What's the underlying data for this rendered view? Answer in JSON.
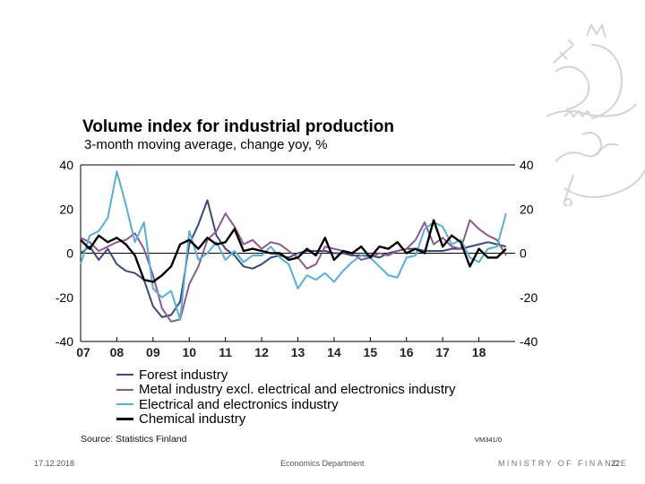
{
  "slide": {
    "footer": {
      "date": "17.12.2018",
      "department": "Economics Department",
      "ministry": "MINISTRY OF FINANCE",
      "page": "22"
    },
    "logo_icon": "finnish-lion-crest-icon"
  },
  "chart_data": {
    "type": "line",
    "title": "Volume index for industrial production",
    "subtitle": "3-month moving average, change yoy, %",
    "xlabel": "",
    "ylabel": "",
    "ylim": [
      -40,
      40
    ],
    "xlim": [
      2007.0,
      2019.0
    ],
    "y_ticks": [
      40,
      20,
      0,
      -20,
      -40
    ],
    "y_tick_labels": [
      "40",
      "20",
      "0",
      "-20",
      "-40"
    ],
    "x_ticks": [
      2007,
      2008,
      2009,
      2010,
      2011,
      2012,
      2013,
      2014,
      2015,
      2016,
      2017,
      2018
    ],
    "x_tick_labels": [
      "07",
      "08",
      "09",
      "10",
      "11",
      "12",
      "13",
      "14",
      "15",
      "16",
      "17",
      "18"
    ],
    "dual_y_axis": true,
    "grid": false,
    "zero_line": true,
    "legend_position": "bottom",
    "source": "Source: Statistics Finland",
    "code": "VM341/0",
    "x": [
      2007.0,
      2007.25,
      2007.5,
      2007.75,
      2008.0,
      2008.25,
      2008.5,
      2008.75,
      2009.0,
      2009.25,
      2009.5,
      2009.75,
      2010.0,
      2010.25,
      2010.5,
      2010.75,
      2011.0,
      2011.25,
      2011.5,
      2011.75,
      2012.0,
      2012.25,
      2012.5,
      2012.75,
      2013.0,
      2013.25,
      2013.5,
      2013.75,
      2014.0,
      2014.25,
      2014.5,
      2014.75,
      2015.0,
      2015.25,
      2015.5,
      2015.75,
      2016.0,
      2016.25,
      2016.5,
      2016.75,
      2017.0,
      2017.25,
      2017.5,
      2017.75,
      2018.0,
      2018.25,
      2018.5,
      2018.75
    ],
    "series": [
      {
        "name": "Forest industry",
        "color": "#3b4a78",
        "values": [
          0,
          3,
          -3,
          2,
          -5,
          -8,
          -9,
          -12,
          -24,
          -29,
          -28,
          -22,
          4,
          13,
          24,
          8,
          2,
          -1,
          -6,
          -7,
          -5,
          -2,
          -1,
          -2,
          0,
          1,
          1,
          1,
          0,
          0,
          -1,
          -1,
          -1,
          -2,
          0,
          1,
          2,
          2,
          1,
          1,
          1,
          2,
          2,
          3,
          4,
          5,
          4,
          3
        ]
      },
      {
        "name": "Metal industry excl. electrical and electronics industry",
        "color": "#8e5a8e",
        "values": [
          7,
          5,
          1,
          3,
          5,
          6,
          9,
          2,
          -10,
          -25,
          -31,
          -30,
          -14,
          -6,
          6,
          10,
          18,
          12,
          4,
          6,
          2,
          5,
          4,
          1,
          -2,
          -7,
          -5,
          3,
          2,
          1,
          0,
          -3,
          -2,
          0,
          -1,
          1,
          2,
          6,
          14,
          4,
          7,
          3,
          2,
          15,
          11,
          8,
          6,
          -1
        ]
      },
      {
        "name": "Electrical and electronics industry",
        "color": "#5aaed6",
        "values": [
          -5,
          8,
          10,
          16,
          37,
          22,
          5,
          14,
          -16,
          -20,
          -17,
          -30,
          10,
          -3,
          0,
          5,
          -3,
          1,
          -4,
          -1,
          -1,
          3,
          -2,
          -5,
          -16,
          -10,
          -12,
          -9,
          -13,
          -8,
          -4,
          -1,
          -2,
          -6,
          -10,
          -11,
          -2,
          -1,
          11,
          14,
          12,
          4,
          6,
          -2,
          -4,
          2,
          3,
          18
        ]
      },
      {
        "name": "Chemical industry",
        "color": "#000000",
        "values": [
          6,
          2,
          8,
          5,
          7,
          4,
          -1,
          -12,
          -13,
          -10,
          -6,
          4,
          6,
          2,
          7,
          4,
          5,
          11,
          1,
          2,
          1,
          0,
          0,
          -3,
          -2,
          2,
          -1,
          7,
          -3,
          1,
          0,
          3,
          -2,
          3,
          2,
          5,
          0,
          2,
          0,
          15,
          3,
          8,
          5,
          -6,
          2,
          -2,
          -2,
          2
        ]
      }
    ]
  }
}
